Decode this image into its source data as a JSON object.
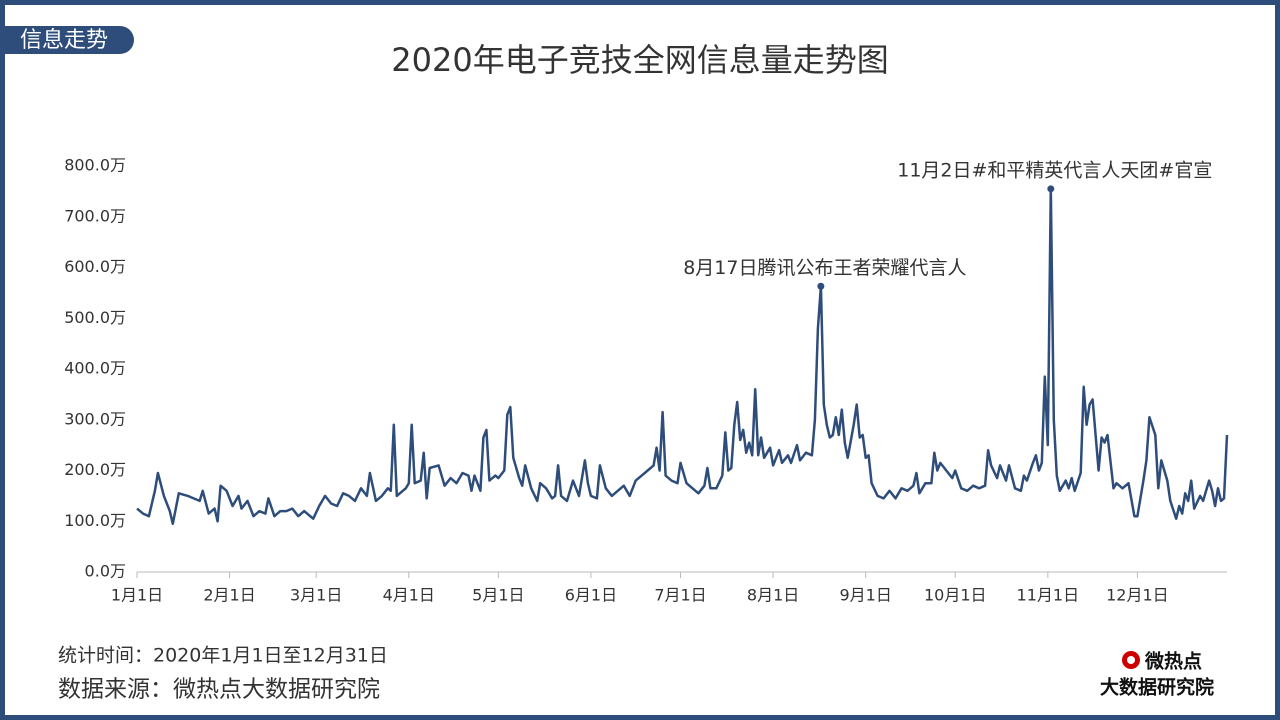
{
  "header": {
    "tag": "信息走势"
  },
  "chart_data": {
    "type": "line",
    "title": "2020年电子竞技全网信息量走势图",
    "color": "#2e4d7b",
    "x": [
      1,
      3,
      5,
      7,
      8,
      10,
      12,
      13,
      15,
      18,
      20,
      22,
      23,
      25,
      27,
      28,
      29,
      31,
      33,
      35,
      36,
      38,
      40,
      42,
      44,
      45,
      47,
      49,
      51,
      53,
      55,
      57,
      59,
      60,
      62,
      64,
      66,
      68,
      70,
      72,
      74,
      76,
      78,
      79,
      81,
      83,
      85,
      86,
      87,
      88,
      90,
      91,
      92,
      93,
      94,
      96,
      97,
      98,
      99,
      102,
      104,
      106,
      108,
      110,
      112,
      113,
      114,
      116,
      117,
      118,
      119,
      121,
      122,
      124,
      125,
      126,
      127,
      129,
      130,
      131,
      133,
      135,
      136,
      138,
      140,
      141,
      142,
      143,
      145,
      147,
      149,
      151,
      152,
      153,
      155,
      156,
      158,
      160,
      162,
      164,
      166,
      168,
      170,
      172,
      174,
      175,
      176,
      177,
      178,
      180,
      182,
      183,
      185,
      187,
      189,
      191,
      192,
      193,
      195,
      197,
      198,
      199,
      200,
      201,
      202,
      203,
      204,
      205,
      206,
      207,
      208,
      209,
      210,
      211,
      213,
      214,
      216,
      217,
      219,
      220,
      222,
      223,
      225,
      227,
      228,
      229,
      230,
      231,
      232,
      233,
      234,
      235,
      236,
      237,
      238,
      239,
      241,
      242,
      243,
      244,
      245,
      246,
      247,
      249,
      251,
      253,
      255,
      257,
      259,
      261,
      262,
      263,
      265,
      267,
      268,
      269,
      270,
      272,
      274,
      275,
      277,
      279,
      281,
      283,
      285,
      286,
      287,
      289,
      290,
      292,
      293,
      295,
      297,
      298,
      299,
      301,
      302,
      303,
      304,
      305,
      306,
      307,
      308,
      309,
      310,
      312,
      313,
      314,
      315,
      317,
      318,
      319,
      320,
      321,
      323,
      324,
      325,
      326,
      328,
      329,
      331,
      333,
      335,
      336,
      338,
      339,
      340,
      342,
      343,
      344,
      346,
      347,
      349,
      350,
      351,
      352,
      353,
      354,
      355,
      357,
      358,
      360,
      361,
      362,
      363,
      364,
      365,
      366
    ],
    "values": [
      125,
      115,
      110,
      160,
      195,
      150,
      120,
      95,
      155,
      150,
      145,
      140,
      160,
      115,
      125,
      100,
      170,
      160,
      130,
      150,
      125,
      140,
      110,
      120,
      115,
      145,
      110,
      120,
      120,
      125,
      110,
      120,
      110,
      105,
      130,
      150,
      135,
      130,
      155,
      150,
      140,
      165,
      150,
      195,
      140,
      150,
      165,
      160,
      290,
      150,
      160,
      165,
      175,
      290,
      175,
      180,
      235,
      145,
      205,
      210,
      170,
      185,
      175,
      195,
      190,
      160,
      190,
      160,
      265,
      280,
      180,
      190,
      185,
      200,
      310,
      325,
      225,
      185,
      170,
      210,
      165,
      140,
      175,
      165,
      145,
      150,
      210,
      150,
      140,
      180,
      150,
      220,
      175,
      150,
      145,
      210,
      165,
      150,
      160,
      170,
      150,
      180,
      190,
      200,
      210,
      245,
      200,
      315,
      190,
      180,
      175,
      215,
      175,
      165,
      155,
      170,
      205,
      165,
      165,
      190,
      275,
      200,
      205,
      290,
      335,
      260,
      280,
      235,
      255,
      230,
      360,
      230,
      265,
      225,
      245,
      210,
      240,
      215,
      230,
      215,
      250,
      220,
      235,
      230,
      300,
      480,
      563,
      330,
      290,
      265,
      270,
      305,
      270,
      320,
      255,
      225,
      290,
      330,
      265,
      270,
      225,
      230,
      175,
      150,
      145,
      160,
      145,
      165,
      160,
      170,
      195,
      155,
      175,
      175,
      235,
      200,
      215,
      200,
      185,
      200,
      165,
      160,
      170,
      165,
      170,
      240,
      210,
      185,
      210,
      180,
      210,
      165,
      160,
      190,
      180,
      215,
      230,
      200,
      215,
      385,
      250,
      755,
      300,
      190,
      160,
      180,
      165,
      185,
      160,
      195,
      365,
      290,
      330,
      340,
      200,
      265,
      255,
      270,
      165,
      175,
      165,
      175,
      110,
      110,
      180,
      220,
      305,
      270,
      165,
      220,
      180,
      140,
      105,
      130,
      115,
      155,
      140,
      180,
      125,
      150,
      140,
      180,
      160,
      130,
      165,
      140,
      145,
      270
    ],
    "xlim": [
      1,
      366
    ],
    "xticks": [
      {
        "value": 1,
        "label": "1月1日"
      },
      {
        "value": 32,
        "label": "2月1日"
      },
      {
        "value": 61,
        "label": "3月1日"
      },
      {
        "value": 92,
        "label": "4月1日"
      },
      {
        "value": 122,
        "label": "5月1日"
      },
      {
        "value": 153,
        "label": "6月1日"
      },
      {
        "value": 183,
        "label": "7月1日"
      },
      {
        "value": 214,
        "label": "8月1日"
      },
      {
        "value": 245,
        "label": "9月1日"
      },
      {
        "value": 275,
        "label": "10月1日"
      },
      {
        "value": 306,
        "label": "11月1日"
      },
      {
        "value": 336,
        "label": "12月1日"
      }
    ],
    "ylim": [
      0,
      800
    ],
    "yticks": [
      {
        "value": 0,
        "label": "0.0万"
      },
      {
        "value": 100,
        "label": "100.0万"
      },
      {
        "value": 200,
        "label": "200.0万"
      },
      {
        "value": 300,
        "label": "300.0万"
      },
      {
        "value": 400,
        "label": "400.0万"
      },
      {
        "value": 500,
        "label": "500.0万"
      },
      {
        "value": 600,
        "label": "600.0万"
      },
      {
        "value": 700,
        "label": "700.0万"
      },
      {
        "value": 800,
        "label": "800.0万"
      }
    ],
    "annotations": [
      {
        "text": "8月17日腾讯公布王者荣耀代言人",
        "x": 230
      },
      {
        "text": "11月2日#和平精英代言人天团#官宣",
        "x": 307
      }
    ]
  },
  "footer": {
    "period": "统计时间：2020年1月1日至12月31日",
    "source": "数据来源：微热点大数据研究院",
    "logo_top": "微热点",
    "logo_bottom": "大数据研究院"
  }
}
